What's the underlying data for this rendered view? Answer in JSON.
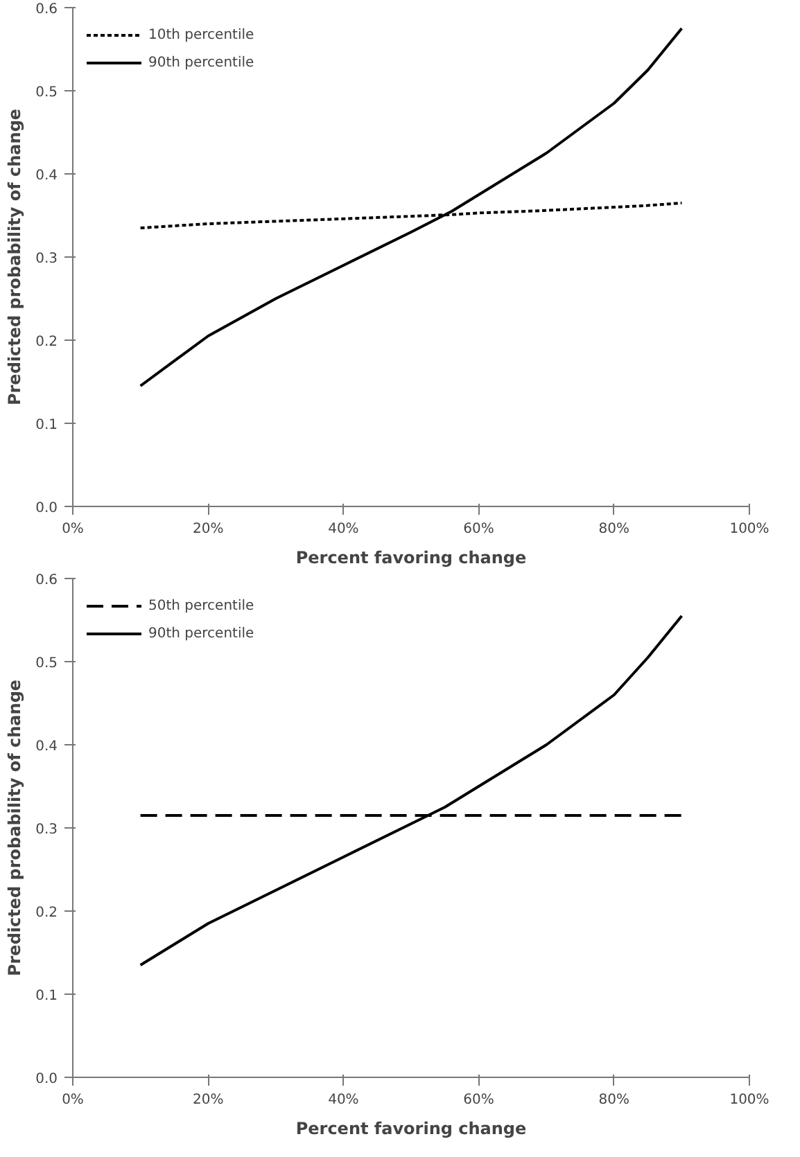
{
  "chart_data": [
    {
      "type": "line",
      "xlabel": "Percent favoring change",
      "ylabel": "Predicted probability of change",
      "xlim": [
        0,
        100
      ],
      "xticks": [
        {
          "value": 0,
          "label": "0%"
        },
        {
          "value": 20,
          "label": "20%"
        },
        {
          "value": 40,
          "label": "40%"
        },
        {
          "value": 60,
          "label": "60%"
        },
        {
          "value": 80,
          "label": "80%"
        },
        {
          "value": 100,
          "label": "100%"
        }
      ],
      "ylim": [
        0,
        0.6
      ],
      "yticks": [
        {
          "value": 0,
          "label": "0.0"
        },
        0.1,
        0.2,
        0.3,
        0.4,
        0.5,
        0.6
      ],
      "x": [
        10,
        20,
        30,
        40,
        50,
        56,
        60,
        70,
        80,
        85,
        90
      ],
      "legend": "top left",
      "grid": false,
      "series": [
        {
          "name": "10th percentile",
          "color": "#000000",
          "line_style": "dotted",
          "values": [
            0.335,
            0.34,
            0.343,
            0.346,
            0.349,
            0.351,
            0.353,
            0.356,
            0.36,
            0.362,
            0.365
          ]
        },
        {
          "name": "90th percentile",
          "color": "#000000",
          "line_style": "solid",
          "values": [
            0.145,
            0.205,
            0.25,
            0.29,
            0.33,
            0.355,
            0.375,
            0.425,
            0.485,
            0.525,
            0.575
          ]
        }
      ]
    },
    {
      "type": "line",
      "xlabel": "Percent favoring change",
      "ylabel": "Predicted probability of change",
      "xlim": [
        0,
        100
      ],
      "xticks": [
        {
          "value": 0,
          "label": "0%"
        },
        {
          "value": 20,
          "label": "20%"
        },
        {
          "value": 40,
          "label": "40%"
        },
        {
          "value": 60,
          "label": "60%"
        },
        {
          "value": 80,
          "label": "80%"
        },
        {
          "value": 100,
          "label": "100%"
        }
      ],
      "ylim": [
        0,
        0.6
      ],
      "yticks": [
        {
          "value": 0,
          "label": "0.0"
        },
        0.1,
        0.2,
        0.3,
        0.4,
        0.5,
        0.6
      ],
      "x": [
        10,
        20,
        30,
        40,
        50,
        55,
        60,
        70,
        80,
        85,
        90
      ],
      "legend": "top left",
      "grid": false,
      "series": [
        {
          "name": "50th percentile",
          "color": "#000000",
          "line_style": "dashed",
          "values": [
            0.315,
            0.315,
            0.315,
            0.315,
            0.315,
            0.315,
            0.315,
            0.315,
            0.315,
            0.315,
            0.315
          ]
        },
        {
          "name": "90th percentile",
          "color": "#000000",
          "line_style": "solid",
          "values": [
            0.135,
            0.185,
            0.225,
            0.265,
            0.305,
            0.325,
            0.35,
            0.4,
            0.46,
            0.505,
            0.555
          ]
        }
      ]
    }
  ]
}
